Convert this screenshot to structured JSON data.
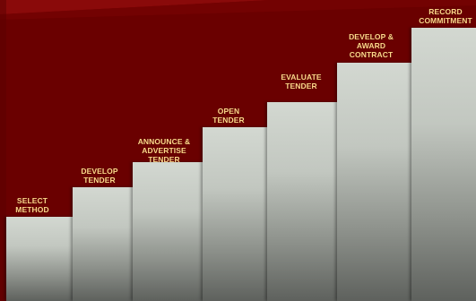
{
  "steps": [
    {
      "label": "SELECT\nMETHOD"
    },
    {
      "label": "DEVELOP\nTENDER"
    },
    {
      "label": "ANNOUNCE &\nADVERTISE\nTENDER"
    },
    {
      "label": "OPEN\nTENDER"
    },
    {
      "label": "EVALUATE\nTENDER"
    },
    {
      "label": "DEVELOP &\nAWARD\nCONTRACT"
    },
    {
      "label": "RECORD\nCOMMITMENT"
    }
  ],
  "colors": {
    "background": "#6e0000",
    "background_band": "#8a0a0a",
    "label": "#ffd98a"
  }
}
